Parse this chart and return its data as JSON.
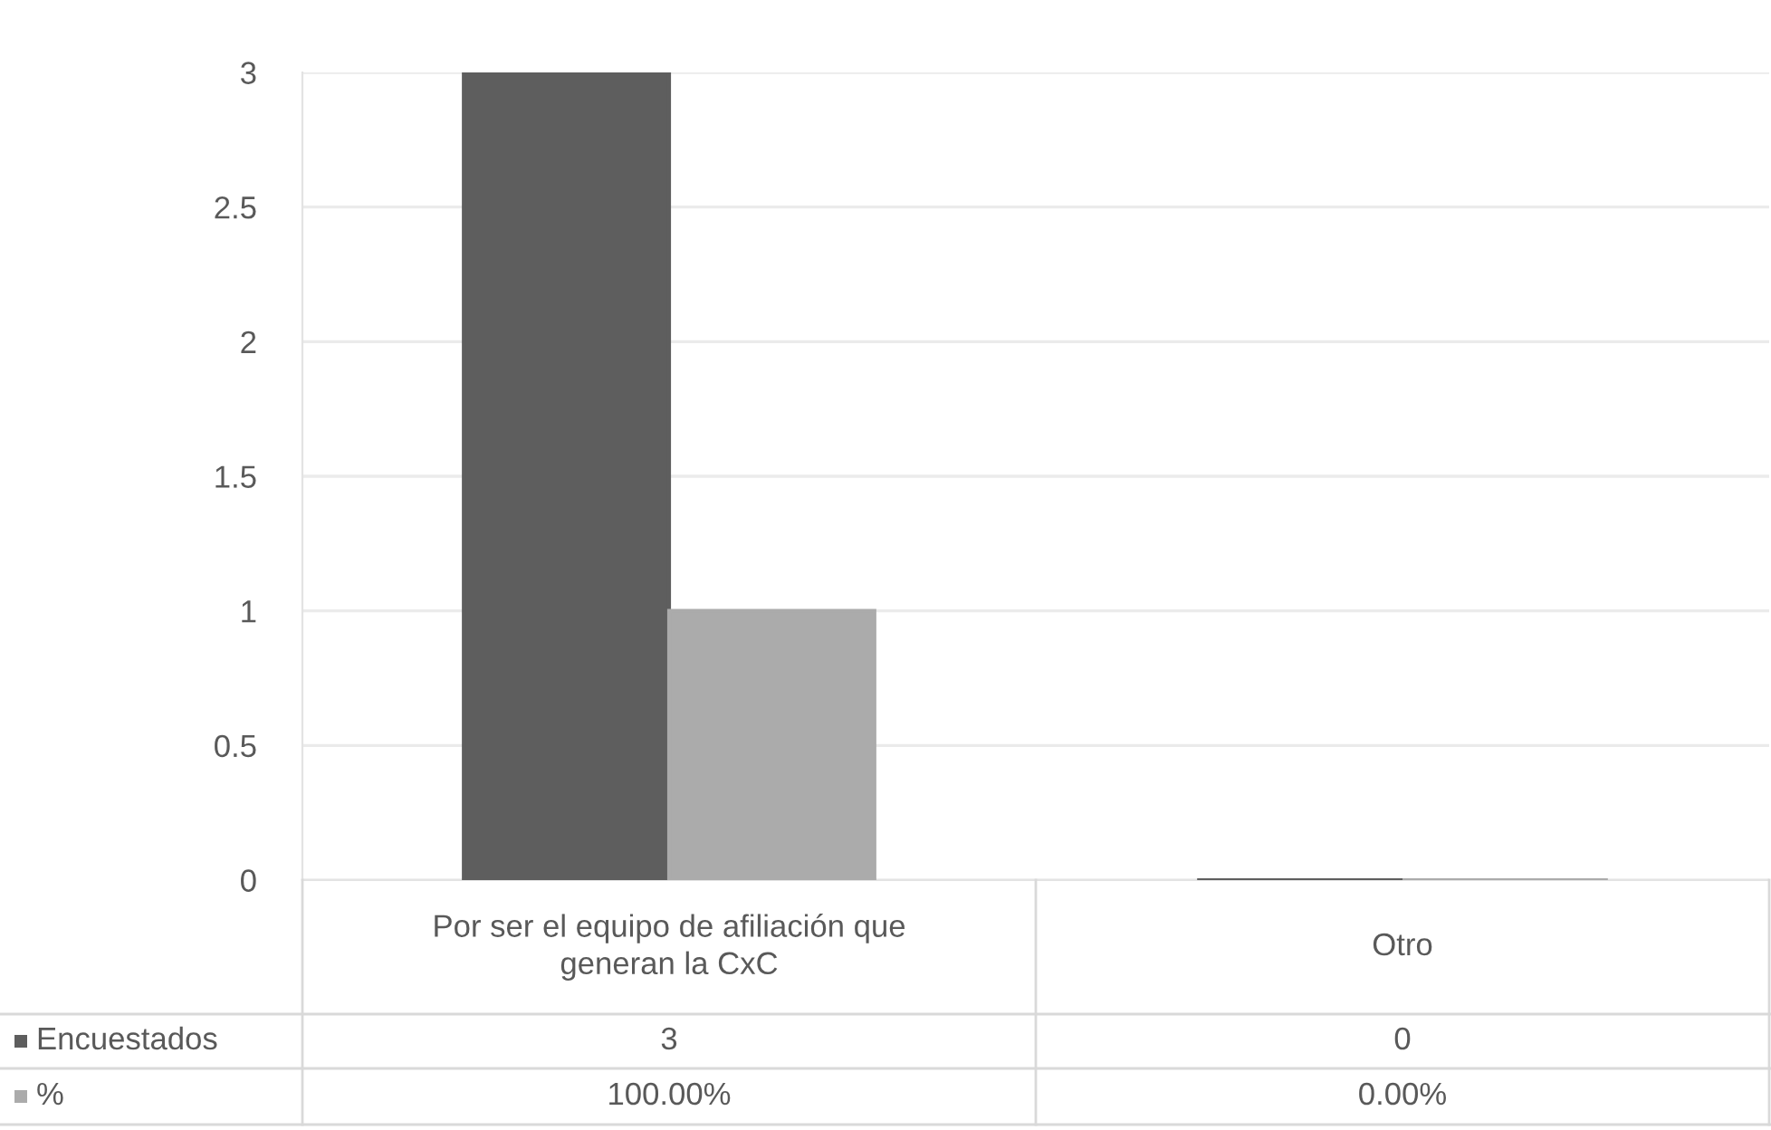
{
  "chart_data": {
    "type": "bar",
    "categories": [
      "Por ser el equipo de afiliación que generan la CxC",
      "Otro"
    ],
    "series": [
      {
        "name": "Encuestados",
        "color": "#5e5e5e",
        "values": [
          3,
          0
        ],
        "value_labels": [
          "3",
          "0"
        ]
      },
      {
        "name": "%",
        "color": "#ababab",
        "values": [
          1,
          0
        ],
        "value_labels": [
          "100.00%",
          "0.00%"
        ]
      }
    ],
    "ylim": [
      0,
      3
    ],
    "yticks": [
      0,
      0.5,
      1,
      1.5,
      2,
      2.5,
      3
    ],
    "grid": "y",
    "legend": "bottom"
  }
}
